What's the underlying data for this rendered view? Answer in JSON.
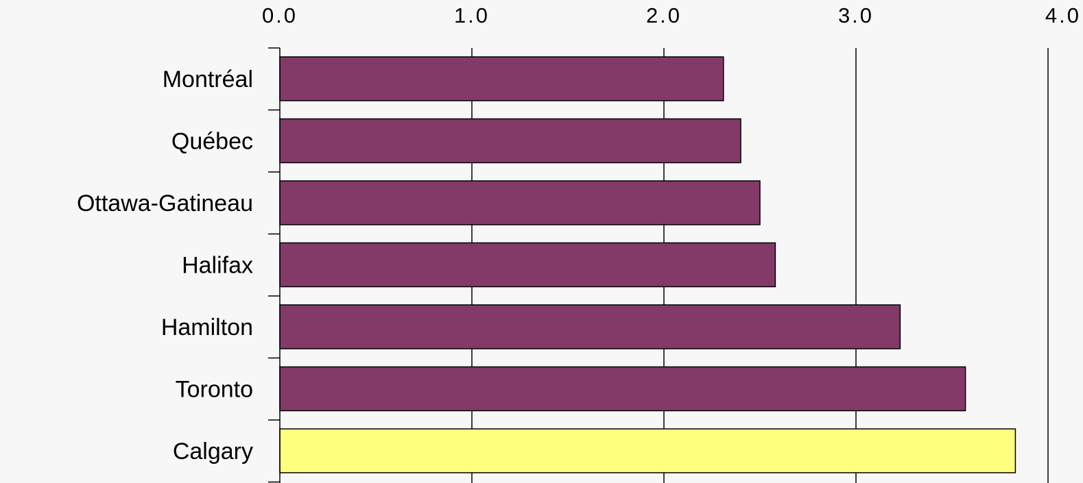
{
  "chart_data": {
    "type": "bar",
    "orientation": "horizontal",
    "categories": [
      "Montréal",
      "Québec",
      "Ottawa-Gatineau",
      "Halifax",
      "Hamilton",
      "Toronto",
      "Calgary"
    ],
    "values": [
      2.31,
      2.4,
      2.5,
      2.58,
      3.23,
      3.57,
      3.83
    ],
    "bar_colors": [
      "#843a69",
      "#843a69",
      "#843a69",
      "#843a69",
      "#843a69",
      "#843a69",
      "#ffff80"
    ],
    "x_ticks": [
      "0.0",
      "1.0",
      "2.0",
      "3.0",
      "4.0"
    ],
    "xlim": [
      0,
      4
    ],
    "x_axis_position": "top",
    "grid": true,
    "title": "",
    "xlabel": "",
    "ylabel": ""
  }
}
